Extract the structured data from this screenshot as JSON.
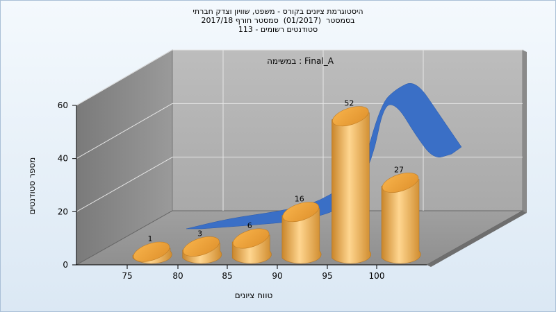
{
  "title_lines": [
    "היסטוגרמת ציונים בקורס - משפט, שוויון וצדק חברתי",
    "בסמסטר  (01/2017)  סמסטר חורף 2017/18",
    "סטודנטים רשומים - 113"
  ],
  "chart_data": {
    "type": "bar",
    "subtitle": "במשימה : Final_A",
    "xlabel": "טווח ציונים",
    "ylabel": "מספר סטודנטים",
    "x_ticks": [
      "75",
      "80",
      "85",
      "90",
      "95",
      "100"
    ],
    "y_ticks": [
      "0",
      "20",
      "40",
      "60"
    ],
    "ylim": [
      0,
      60
    ],
    "categories": [
      "75-80",
      "80-85",
      "85-90",
      "90-95",
      "95-100",
      "100"
    ],
    "values": [
      1,
      3,
      6,
      16,
      52,
      27
    ],
    "data_labels": [
      "1",
      "3",
      "6",
      "16",
      "52",
      "27"
    ],
    "bar_color": "#e9a23b",
    "curve_color": "#3a6fc6",
    "grid": true
  }
}
